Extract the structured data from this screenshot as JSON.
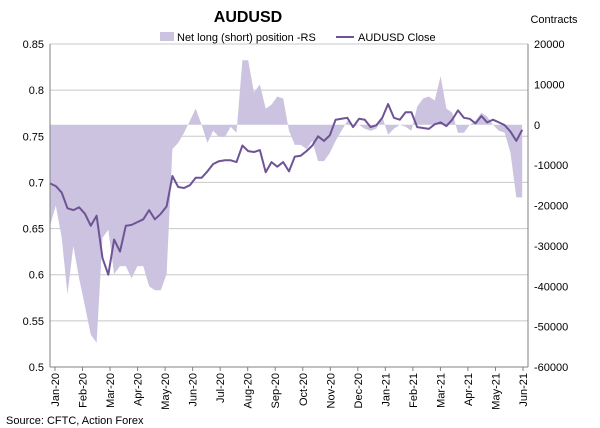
{
  "chart_data": {
    "type": "area+line",
    "title": "AUDUSD",
    "right_axis_label": "Contracts",
    "source": "Source: CFTC, Action Forex",
    "legend_placement": "top-center",
    "grid": "horizontal",
    "y_left": {
      "min": 0.5,
      "max": 0.85,
      "ticks": [
        "0.5",
        "0.55",
        "0.6",
        "0.65",
        "0.7",
        "0.75",
        "0.8",
        "0.85"
      ]
    },
    "y_right": {
      "min": -60000,
      "max": 20000,
      "ticks": [
        "-60000",
        "-50000",
        "-40000",
        "-30000",
        "-20000",
        "-10000",
        "0",
        "10000",
        "20000"
      ]
    },
    "x_labels": [
      "Jan-20",
      "Feb-20",
      "Mar-20",
      "Apr-20",
      "May-20",
      "Jun-20",
      "Jul-20",
      "Aug-20",
      "Sep-20",
      "Oct-20",
      "Nov-20",
      "Dec-20",
      "Jan-21",
      "Feb-21",
      "Mar-21",
      "Apr-21",
      "May-21",
      "Jun-21"
    ],
    "series": [
      {
        "name": "Net long (short) position -RS",
        "kind": "area",
        "axis": "right",
        "color": "#cbc3df",
        "points": [
          [
            0,
            -25000
          ],
          [
            1,
            -20000
          ],
          [
            2,
            -28000
          ],
          [
            3,
            -42000
          ],
          [
            4,
            -30000
          ],
          [
            5,
            -38000
          ],
          [
            6,
            -45000
          ],
          [
            7,
            -52000
          ],
          [
            8,
            -54000
          ],
          [
            9,
            -28000
          ],
          [
            10,
            -26000
          ],
          [
            11,
            -37000
          ],
          [
            12,
            -35000
          ],
          [
            13,
            -35000
          ],
          [
            14,
            -38000
          ],
          [
            15,
            -35000
          ],
          [
            16,
            -35000
          ],
          [
            17,
            -40000
          ],
          [
            18,
            -41000
          ],
          [
            19,
            -41000
          ],
          [
            20,
            -37000
          ],
          [
            21,
            -6000
          ],
          [
            22,
            -4500
          ],
          [
            23,
            -2000
          ],
          [
            24,
            1000
          ],
          [
            25,
            4000
          ],
          [
            26,
            0
          ],
          [
            27,
            -4500
          ],
          [
            28,
            -1500
          ],
          [
            29,
            -3000
          ],
          [
            30,
            -3000
          ],
          [
            31,
            -500
          ],
          [
            32,
            -2000
          ],
          [
            33,
            16000
          ],
          [
            34,
            16000
          ],
          [
            35,
            8000
          ],
          [
            36,
            10000
          ],
          [
            37,
            4000
          ],
          [
            38,
            5000
          ],
          [
            39,
            7000
          ],
          [
            40,
            6500
          ],
          [
            41,
            -1500
          ],
          [
            42,
            -5000
          ],
          [
            43,
            -5000
          ],
          [
            44,
            -6000
          ],
          [
            45,
            -4000
          ],
          [
            46,
            -9000
          ],
          [
            47,
            -9000
          ],
          [
            48,
            -7000
          ],
          [
            49,
            -4000
          ],
          [
            50,
            -1500
          ],
          [
            51,
            1000
          ],
          [
            52,
            -500
          ],
          [
            53,
            0
          ],
          [
            54,
            -1000
          ],
          [
            55,
            -1500
          ],
          [
            56,
            -1000
          ],
          [
            57,
            2000
          ],
          [
            58,
            -2500
          ],
          [
            59,
            -1000
          ],
          [
            60,
            0
          ],
          [
            61,
            -500
          ],
          [
            62,
            -1500
          ],
          [
            63,
            4500
          ],
          [
            64,
            6500
          ],
          [
            65,
            7000
          ],
          [
            66,
            6000
          ],
          [
            67,
            12000
          ],
          [
            68,
            4000
          ],
          [
            69,
            3000
          ],
          [
            70,
            -2000
          ],
          [
            71,
            -2000
          ],
          [
            72,
            0
          ],
          [
            73,
            1000
          ],
          [
            74,
            3000
          ],
          [
            75,
            2000
          ],
          [
            76,
            0
          ],
          [
            77,
            -1500
          ],
          [
            78,
            -2000
          ],
          [
            79,
            -7000
          ],
          [
            80,
            -18000
          ],
          [
            81,
            -18000
          ]
        ]
      },
      {
        "name": "AUDUSD Close",
        "kind": "line",
        "axis": "left",
        "color": "#6e5496",
        "points": [
          [
            0,
            0.699
          ],
          [
            1,
            0.696
          ],
          [
            2,
            0.689
          ],
          [
            3,
            0.672
          ],
          [
            4,
            0.67
          ],
          [
            5,
            0.673
          ],
          [
            6,
            0.666
          ],
          [
            7,
            0.653
          ],
          [
            8,
            0.664
          ],
          [
            9,
            0.618
          ],
          [
            10,
            0.6
          ],
          [
            11,
            0.638
          ],
          [
            12,
            0.625
          ],
          [
            13,
            0.653
          ],
          [
            14,
            0.654
          ],
          [
            15,
            0.657
          ],
          [
            16,
            0.66
          ],
          [
            17,
            0.67
          ],
          [
            18,
            0.66
          ],
          [
            19,
            0.666
          ],
          [
            20,
            0.674
          ],
          [
            21,
            0.707
          ],
          [
            22,
            0.695
          ],
          [
            23,
            0.694
          ],
          [
            24,
            0.697
          ],
          [
            25,
            0.705
          ],
          [
            26,
            0.705
          ],
          [
            27,
            0.712
          ],
          [
            28,
            0.72
          ],
          [
            29,
            0.723
          ],
          [
            30,
            0.724
          ],
          [
            31,
            0.724
          ],
          [
            32,
            0.722
          ],
          [
            33,
            0.74
          ],
          [
            34,
            0.734
          ],
          [
            35,
            0.733
          ],
          [
            36,
            0.735
          ],
          [
            37,
            0.711
          ],
          [
            38,
            0.722
          ],
          [
            39,
            0.717
          ],
          [
            40,
            0.722
          ],
          [
            41,
            0.712
          ],
          [
            42,
            0.728
          ],
          [
            43,
            0.729
          ],
          [
            44,
            0.734
          ],
          [
            45,
            0.74
          ],
          [
            46,
            0.75
          ],
          [
            47,
            0.745
          ],
          [
            48,
            0.751
          ],
          [
            49,
            0.768
          ],
          [
            50,
            0.769
          ],
          [
            51,
            0.77
          ],
          [
            52,
            0.76
          ],
          [
            53,
            0.769
          ],
          [
            54,
            0.768
          ],
          [
            55,
            0.76
          ],
          [
            56,
            0.762
          ],
          [
            57,
            0.77
          ],
          [
            58,
            0.785
          ],
          [
            59,
            0.77
          ],
          [
            60,
            0.768
          ],
          [
            61,
            0.776
          ],
          [
            62,
            0.776
          ],
          [
            63,
            0.76
          ],
          [
            64,
            0.759
          ],
          [
            65,
            0.758
          ],
          [
            66,
            0.763
          ],
          [
            67,
            0.765
          ],
          [
            68,
            0.761
          ],
          [
            69,
            0.768
          ],
          [
            70,
            0.778
          ],
          [
            71,
            0.77
          ],
          [
            72,
            0.769
          ],
          [
            73,
            0.764
          ],
          [
            74,
            0.772
          ],
          [
            75,
            0.765
          ],
          [
            76,
            0.768
          ],
          [
            77,
            0.765
          ],
          [
            78,
            0.762
          ],
          [
            79,
            0.755
          ],
          [
            80,
            0.745
          ],
          [
            81,
            0.757
          ]
        ]
      }
    ]
  }
}
